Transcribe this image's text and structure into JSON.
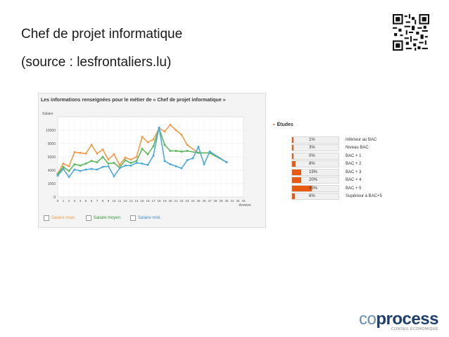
{
  "slide": {
    "title": "Chef de projet informatique",
    "subtitle": "(source : lesfrontaliers.lu)"
  },
  "chart_panel": {
    "title": "Les informations renseignées pour le métier de « Chef de projet informatique »"
  },
  "chart_data": [
    {
      "type": "line",
      "ylabel": "Salaire",
      "xlabel": "Années",
      "ylim": [
        0,
        12000
      ],
      "yticks": [
        0,
        2000,
        4000,
        6000,
        8000,
        10000
      ],
      "xticks": [
        0,
        1,
        2,
        3,
        4,
        5,
        6,
        7,
        8,
        9,
        10,
        11,
        12,
        13,
        14,
        15,
        16,
        17,
        18,
        19,
        20,
        21,
        22,
        23,
        24,
        25,
        26,
        27,
        28,
        29,
        30,
        31,
        32,
        33
      ],
      "grid": true,
      "legend": "bottom",
      "series": [
        {
          "name": "Salaire maxi.",
          "color": "#f29b4b",
          "x": [
            0,
            1,
            2,
            3,
            4,
            5,
            6,
            7,
            8,
            9,
            10,
            11,
            12,
            13,
            14,
            15,
            16,
            17,
            18,
            19,
            20,
            21,
            22,
            23,
            25,
            27,
            30
          ],
          "y": [
            3500,
            5000,
            4600,
            6700,
            6600,
            6500,
            7800,
            6500,
            7100,
            5600,
            6400,
            4800,
            5900,
            5600,
            6000,
            9000,
            8200,
            8600,
            10300,
            9800,
            10800,
            10000,
            9300,
            7800,
            6600,
            6600,
            5200
          ]
        },
        {
          "name": "Salaire moyen",
          "color": "#5cb85c",
          "x": [
            0,
            1,
            2,
            3,
            4,
            5,
            6,
            7,
            8,
            9,
            10,
            11,
            12,
            13,
            14,
            15,
            16,
            17,
            18,
            19,
            20,
            21,
            22,
            23,
            25,
            27,
            30
          ],
          "y": [
            3400,
            4500,
            3900,
            4900,
            4700,
            5000,
            5400,
            5200,
            6000,
            5000,
            5100,
            4400,
            5500,
            5100,
            5400,
            7200,
            6400,
            7600,
            10300,
            7800,
            6900,
            6900,
            6800,
            6900,
            6600,
            6600,
            5200
          ]
        },
        {
          "name": "Salaire mini.",
          "color": "#4faad8",
          "x": [
            0,
            1,
            2,
            3,
            4,
            5,
            6,
            7,
            8,
            9,
            10,
            11,
            12,
            13,
            14,
            15,
            16,
            17,
            18,
            19,
            20,
            21,
            22,
            23,
            24,
            25,
            26,
            27,
            30
          ],
          "y": [
            3200,
            4200,
            3000,
            4100,
            3900,
            4100,
            4200,
            4100,
            4500,
            4600,
            3100,
            4300,
            4700,
            4700,
            5100,
            5000,
            4800,
            6200,
            10400,
            5400,
            4900,
            4600,
            4300,
            5500,
            5800,
            7500,
            4900,
            6800,
            5200
          ]
        }
      ]
    },
    {
      "type": "bar",
      "title": "Études",
      "categories": [
        "Inférieur au BAC",
        "Niveau BAC",
        "BAC + 1",
        "BAC + 2",
        "BAC + 3",
        "BAC + 4",
        "BAC + 5",
        "Supérieur à BAC+5"
      ],
      "values": [
        1,
        3,
        0,
        8,
        19,
        20,
        43,
        6
      ],
      "labels": [
        "1%",
        "3%",
        "0%",
        "8%",
        "19%",
        "20%",
        "43%",
        "6%"
      ],
      "color": "#e85a0f",
      "xlim": [
        0,
        100
      ]
    }
  ],
  "logo": {
    "part1": "co",
    "part2": "process",
    "tagline": "CONSEIL ÉCONOMIQUE"
  }
}
